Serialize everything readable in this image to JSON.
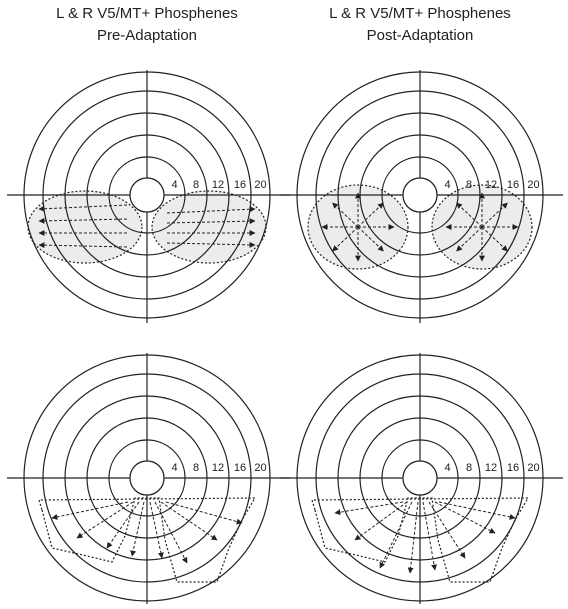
{
  "columns": [
    {
      "title": "L & R V5/MT+ Phosphenes",
      "subtitle": "Pre-Adaptation"
    },
    {
      "title": "L & R V5/MT+ Phosphenes",
      "subtitle": "Post-Adaptation"
    }
  ],
  "panels": [
    {
      "ring_labels": [
        "4",
        "8",
        "12",
        "16",
        "20"
      ]
    },
    {
      "ring_labels": [
        "4",
        "8",
        "12",
        "16",
        "20"
      ]
    },
    {
      "ring_labels": [
        "4",
        "8",
        "12",
        "16",
        "20"
      ]
    },
    {
      "ring_labels": [
        "4",
        "8",
        "12",
        "16",
        "20"
      ]
    }
  ]
}
